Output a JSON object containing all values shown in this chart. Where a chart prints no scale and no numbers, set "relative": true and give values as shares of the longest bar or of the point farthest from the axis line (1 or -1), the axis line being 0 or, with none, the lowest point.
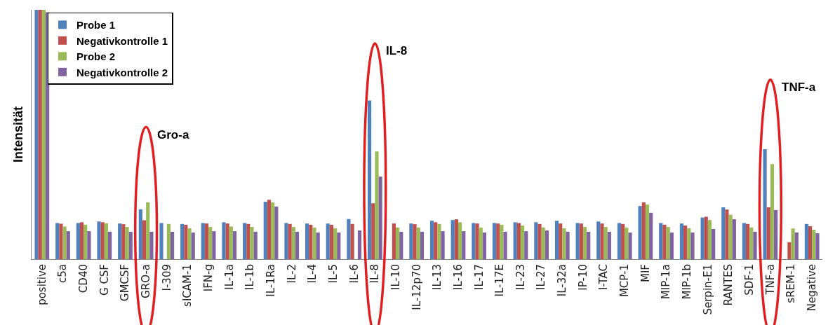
{
  "chart_data": {
    "type": "bar",
    "relative": true,
    "ylabel": "Intensität",
    "legend": "top left",
    "grid": false,
    "categories": [
      "positive",
      "c5a",
      "CD40",
      "G CSF",
      "GMCSF",
      "GRO-a",
      "I-309",
      "sICAM-1",
      "IFN-g",
      "IL-1a",
      "IL-1b",
      "IL-1Ra",
      "IL-2",
      "IL-4",
      "IL-5",
      "IL-6",
      "IL-8",
      "IL-10",
      "IL-12p70",
      "IL-13",
      "IL-16",
      "IL-17",
      "IL-17E",
      "IL-23",
      "IL-27",
      "IL-32a",
      "IP-10",
      "I-TAC",
      "MCP-1",
      "MIF",
      "MIP-1a",
      "MIP-1b",
      "Serpin-E1",
      "RANTES",
      "SDF-1",
      "TNF-a",
      "sREM-1",
      "Negative"
    ],
    "series": [
      {
        "name": "Probe 1",
        "color": "#4f81bd",
        "values": [
          1,
          0.145,
          0.145,
          0.151,
          0.143,
          0.2,
          0.145,
          0.141,
          0.145,
          0.148,
          0.145,
          0.23,
          0.145,
          0.143,
          0.143,
          0.161,
          0.636,
          null,
          0.143,
          0.154,
          0.157,
          0.145,
          0.145,
          0.148,
          0.148,
          0.154,
          0.145,
          0.151,
          0.145,
          0.213,
          0.145,
          0.143,
          0.167,
          0.208,
          0.145,
          0.441,
          null,
          0.141
        ]
      },
      {
        "name": "Negativkontrolle 1",
        "color": "#c0504d",
        "values": [
          1,
          0.142,
          0.148,
          0.148,
          0.14,
          0.156,
          null,
          0.138,
          0.143,
          0.143,
          0.141,
          0.238,
          0.141,
          0.138,
          0.138,
          0.141,
          0.224,
          0.143,
          0.14,
          0.148,
          0.16,
          0.143,
          0.143,
          0.145,
          0.141,
          0.143,
          0.143,
          0.143,
          0.141,
          0.228,
          0.138,
          0.135,
          0.17,
          0.199,
          0.141,
          0.208,
          0.068,
          0.132
        ]
      },
      {
        "name": "Probe 2",
        "color": "#9bbb59",
        "values": [
          1,
          0.131,
          0.138,
          0.144,
          0.129,
          0.228,
          0.141,
          0.124,
          0.129,
          0.131,
          0.129,
          0.228,
          0.129,
          0.127,
          0.124,
          null,
          0.432,
          0.127,
          0.127,
          0.141,
          0.148,
          0.127,
          0.138,
          0.135,
          0.127,
          0.124,
          0.129,
          0.129,
          0.127,
          0.219,
          0.129,
          0.124,
          0.157,
          0.178,
          0.127,
          0.381,
          0.123,
          0.118
        ]
      },
      {
        "name": "Negativkontrolle 2",
        "color": "#8064a2",
        "values": [
          0.99,
          0.112,
          0.112,
          0.11,
          0.11,
          0.11,
          0.11,
          0.107,
          0.112,
          0.112,
          0.11,
          0.211,
          0.11,
          0.107,
          0.107,
          0.115,
          0.331,
          0.11,
          0.11,
          0.112,
          0.112,
          0.107,
          0.11,
          0.112,
          0.115,
          0.11,
          0.11,
          0.11,
          0.107,
          0.186,
          0.107,
          0.107,
          0.121,
          0.16,
          0.11,
          0.197,
          0.107,
          0.104
        ]
      }
    ],
    "annotations": [
      "Gro-a",
      "IL-8",
      "TNF-a"
    ]
  }
}
